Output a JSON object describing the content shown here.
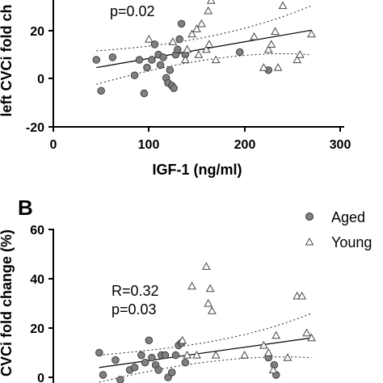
{
  "chart_data": [
    {
      "panel": "",
      "type": "scatter",
      "xlabel": "IGF-1 (ng/ml)",
      "ylabel": "left CVCi fold ch",
      "xlim": [
        0,
        300
      ],
      "ylim": [
        -20,
        30
      ],
      "xticks": [
        "0",
        "100",
        "200",
        "300"
      ],
      "yticks": [
        "-20",
        "0",
        "20"
      ],
      "annotation": [
        "p=0.02"
      ],
      "series": [
        {
          "marker": "circle",
          "color": "#808080",
          "points": [
            [
              45,
              6
            ],
            [
              50,
              -6
            ],
            [
              62,
              7
            ],
            [
              85,
              0
            ],
            [
              90,
              6
            ],
            [
              95,
              -7
            ],
            [
              98,
              3
            ],
            [
              103,
              6
            ],
            [
              106,
              12
            ],
            [
              110,
              8
            ],
            [
              112,
              4
            ],
            [
              115,
              7
            ],
            [
              118,
              -1
            ],
            [
              120,
              -3
            ],
            [
              122,
              2
            ],
            [
              124,
              -4
            ],
            [
              126,
              -5
            ],
            [
              128,
              8
            ],
            [
              130,
              10
            ],
            [
              132,
              14
            ],
            [
              134,
              20
            ],
            [
              138,
              8
            ],
            [
              195,
              9
            ],
            [
              225,
              2
            ]
          ]
        },
        {
          "marker": "triangle",
          "color": "#808080",
          "points": [
            [
              100,
              14
            ],
            [
              125,
              13
            ],
            [
              138,
              6
            ],
            [
              140,
              10
            ],
            [
              145,
              16
            ],
            [
              150,
              18
            ],
            [
              152,
              8
            ],
            [
              155,
              20
            ],
            [
              160,
              10
            ],
            [
              162,
              25
            ],
            [
              163,
              12
            ],
            [
              165,
              29
            ],
            [
              170,
              6
            ],
            [
              210,
              15
            ],
            [
              220,
              3
            ],
            [
              225,
              10
            ],
            [
              228,
              12
            ],
            [
              232,
              17
            ],
            [
              235,
              3
            ],
            [
              240,
              27
            ],
            [
              255,
              6
            ],
            [
              258,
              8
            ],
            [
              270,
              16
            ]
          ]
        }
      ],
      "fit": {
        "x": [
          45,
          270
        ],
        "y": [
          3,
          17.5
        ],
        "ci_upper": [
          9.5,
          27
        ],
        "ci_lower": [
          -3.5,
          8
        ]
      }
    },
    {
      "panel": "B",
      "type": "scatter",
      "ylabel": "CVCi fold change (%)",
      "ylim": [
        0,
        60
      ],
      "yticks": [
        "0",
        "20",
        "40",
        "60"
      ],
      "xlim": [
        0,
        300
      ],
      "annotation": [
        "R=0.32",
        "p=0.03"
      ],
      "legend": [
        "Aged",
        "Young"
      ],
      "legend_position": "top-right",
      "series": [
        {
          "name": "Aged",
          "marker": "circle",
          "color": "#808080",
          "points": [
            [
              48,
              10
            ],
            [
              52,
              1
            ],
            [
              65,
              7
            ],
            [
              70,
              -1
            ],
            [
              80,
              3
            ],
            [
              85,
              4
            ],
            [
              92,
              9
            ],
            [
              96,
              6
            ],
            [
              100,
              15
            ],
            [
              103,
              8
            ],
            [
              107,
              5
            ],
            [
              110,
              3
            ],
            [
              113,
              9
            ],
            [
              117,
              9
            ],
            [
              120,
              0
            ],
            [
              124,
              2
            ],
            [
              128,
              9
            ],
            [
              131,
              13
            ],
            [
              134,
              14
            ],
            [
              138,
              6
            ],
            [
              225,
              8
            ],
            [
              231,
              5
            ],
            [
              233,
              1
            ]
          ]
        },
        {
          "name": "Young",
          "marker": "triangle",
          "color": "#808080",
          "points": [
            [
              135,
              15
            ],
            [
              140,
              9
            ],
            [
              145,
              37
            ],
            [
              150,
              9
            ],
            [
              160,
              45
            ],
            [
              162,
              30
            ],
            [
              164,
              36
            ],
            [
              166,
              27
            ],
            [
              170,
              9
            ],
            [
              200,
              9
            ],
            [
              220,
              13
            ],
            [
              225,
              10
            ],
            [
              230,
              3
            ],
            [
              233,
              17
            ],
            [
              245,
              8
            ],
            [
              255,
              33
            ],
            [
              260,
              33
            ],
            [
              265,
              18
            ],
            [
              270,
              16
            ]
          ]
        }
      ],
      "fit": {
        "x": [
          48,
          270
        ],
        "y": [
          4,
          16
        ],
        "ci_upper": [
          9,
          26
        ],
        "ci_lower": [
          -2,
          8
        ]
      }
    }
  ],
  "panels": {
    "top": {
      "stat_p": "p=0.02",
      "xlabel": "IGF-1 (ng/ml)",
      "ylabel": "left CVCi fold ch",
      "xticks": [
        "0",
        "100",
        "200",
        "300"
      ],
      "yticks": [
        "20",
        "0",
        "-20"
      ]
    },
    "bottom": {
      "letter": "B",
      "stat_r": "R=0.32",
      "stat_p": "p=0.03",
      "ylabel": "CVCi fold change (%)",
      "yticks": [
        "60",
        "40",
        "20",
        "0"
      ],
      "legend_aged": "Aged",
      "legend_young": "Young"
    }
  }
}
